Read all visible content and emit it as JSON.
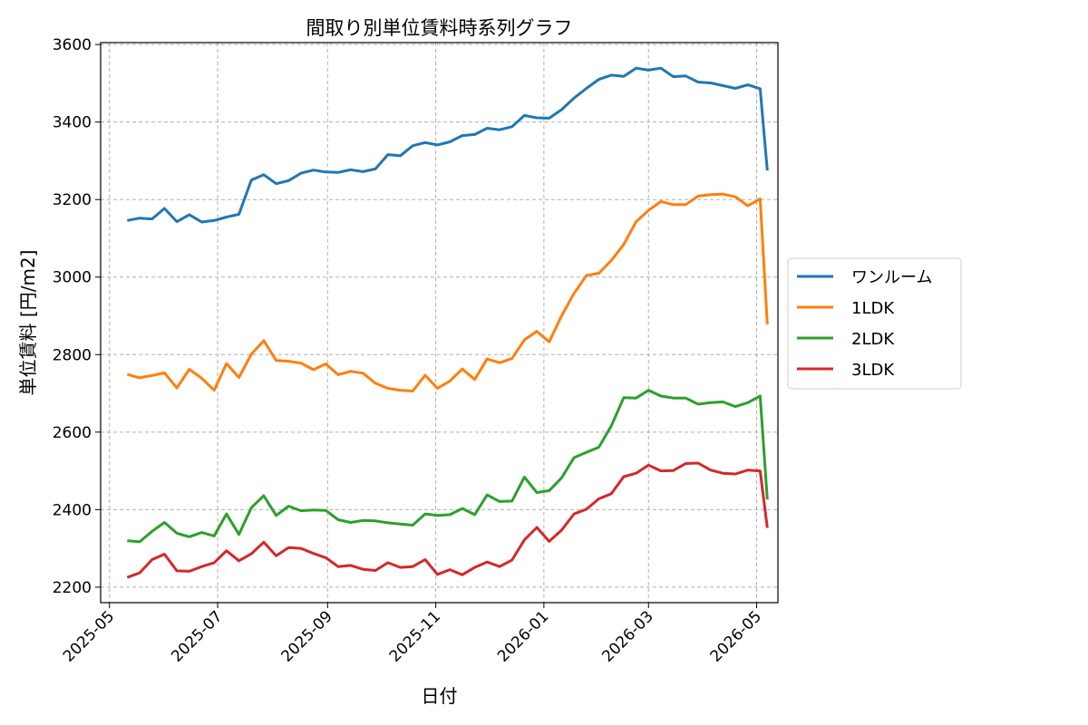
{
  "chart_data": {
    "type": "line",
    "title": "間取り別単位賃料時系列グラフ",
    "xlabel": "日付",
    "ylabel": "単位賃料 [円/m2]",
    "x_ticks": [
      "2025-05",
      "2025-07",
      "2025-09",
      "2025-11",
      "2026-01",
      "2026-03",
      "2026-05"
    ],
    "xlim": [
      "2025-04-26",
      "2026-05-13"
    ],
    "ylim": [
      2160,
      3605
    ],
    "y_ticks": [
      2200,
      2400,
      2600,
      2800,
      3000,
      3200,
      3400,
      3600
    ],
    "grid": true,
    "legend_position": "center-right",
    "x": [
      "2025-05-11",
      "2025-05-18",
      "2025-05-25",
      "2025-06-01",
      "2025-06-08",
      "2025-06-15",
      "2025-06-22",
      "2025-06-29",
      "2025-07-06",
      "2025-07-13",
      "2025-07-20",
      "2025-07-27",
      "2025-08-03",
      "2025-08-10",
      "2025-08-17",
      "2025-08-24",
      "2025-08-31",
      "2025-09-07",
      "2025-09-14",
      "2025-09-21",
      "2025-09-28",
      "2025-10-05",
      "2025-10-12",
      "2025-10-19",
      "2025-10-26",
      "2025-11-02",
      "2025-11-09",
      "2025-11-16",
      "2025-11-23",
      "2025-11-30",
      "2025-12-07",
      "2025-12-14",
      "2025-12-21",
      "2025-12-28",
      "2026-01-04",
      "2026-01-11",
      "2026-01-18",
      "2026-01-25",
      "2026-02-01",
      "2026-02-08",
      "2026-02-15",
      "2026-02-22",
      "2026-03-01",
      "2026-03-08",
      "2026-03-15",
      "2026-03-22",
      "2026-03-29",
      "2026-04-05",
      "2026-04-12",
      "2026-04-19",
      "2026-04-26",
      "2026-05-03",
      "2026-05-07"
    ],
    "series": [
      {
        "name": "ワンルーム",
        "color": "#1f77b4",
        "values": [
          3146,
          3152,
          3150,
          3177,
          3143,
          3161,
          3142,
          3146,
          3155,
          3162,
          3250,
          3264,
          3241,
          3249,
          3268,
          3276,
          3271,
          3270,
          3277,
          3272,
          3279,
          3316,
          3313,
          3339,
          3347,
          3341,
          3349,
          3365,
          3368,
          3384,
          3380,
          3388,
          3417,
          3411,
          3410,
          3432,
          3462,
          3487,
          3510,
          3521,
          3518,
          3539,
          3534,
          3539,
          3517,
          3519,
          3503,
          3501,
          3494,
          3487,
          3496,
          3486,
          3275
        ]
      },
      {
        "name": "1LDK",
        "color": "#ff7f0e",
        "values": [
          2749,
          2740,
          2746,
          2753,
          2714,
          2762,
          2739,
          2708,
          2777,
          2741,
          2801,
          2836,
          2785,
          2783,
          2778,
          2761,
          2776,
          2748,
          2757,
          2752,
          2726,
          2713,
          2708,
          2706,
          2747,
          2713,
          2732,
          2763,
          2736,
          2789,
          2779,
          2790,
          2838,
          2860,
          2833,
          2900,
          2958,
          3004,
          3010,
          3043,
          3084,
          3143,
          3172,
          3195,
          3187,
          3187,
          3209,
          3213,
          3214,
          3207,
          3184,
          3202,
          2878
        ]
      },
      {
        "name": "2LDK",
        "color": "#2ca02c",
        "values": [
          2320,
          2317,
          2344,
          2367,
          2339,
          2330,
          2341,
          2332,
          2389,
          2336,
          2405,
          2436,
          2385,
          2409,
          2397,
          2399,
          2398,
          2374,
          2367,
          2372,
          2371,
          2366,
          2363,
          2360,
          2389,
          2385,
          2387,
          2403,
          2387,
          2438,
          2421,
          2422,
          2484,
          2444,
          2449,
          2482,
          2534,
          2548,
          2561,
          2616,
          2689,
          2688,
          2708,
          2693,
          2688,
          2688,
          2672,
          2676,
          2678,
          2666,
          2676,
          2693,
          2426
        ]
      },
      {
        "name": "3LDK",
        "color": "#d62728",
        "values": [
          2225,
          2237,
          2271,
          2285,
          2242,
          2241,
          2253,
          2263,
          2294,
          2268,
          2286,
          2316,
          2281,
          2302,
          2300,
          2287,
          2276,
          2253,
          2256,
          2246,
          2243,
          2263,
          2251,
          2253,
          2271,
          2233,
          2245,
          2232,
          2251,
          2265,
          2253,
          2270,
          2322,
          2354,
          2318,
          2347,
          2389,
          2401,
          2428,
          2441,
          2485,
          2494,
          2515,
          2500,
          2501,
          2519,
          2520,
          2502,
          2494,
          2492,
          2502,
          2500,
          2353
        ]
      }
    ]
  }
}
